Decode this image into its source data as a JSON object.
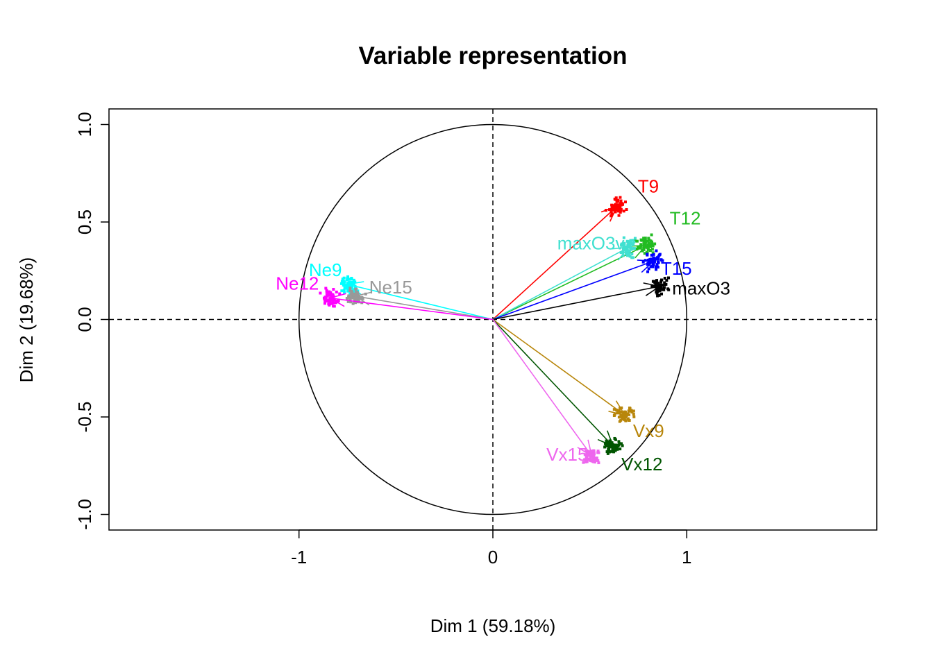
{
  "chart_data": {
    "type": "scatter",
    "title": "Variable representation",
    "xlabel": "Dim 1 (59.18%)",
    "ylabel": "Dim 2 (19.68%)",
    "xlim": [
      -1.98,
      1.98
    ],
    "ylim": [
      -1.08,
      1.08
    ],
    "xticks": [
      -1,
      0,
      1
    ],
    "xtick_labels": [
      "-1",
      "0",
      "1"
    ],
    "yticks": [
      -1.0,
      -0.5,
      0.0,
      0.5,
      1.0
    ],
    "ytick_labels": [
      "-1.0",
      "-0.5",
      "0.0",
      "0.5",
      "1.0"
    ],
    "unit_circle": true,
    "reference_lines": "dashed at x=0 and y=0",
    "grid": false,
    "series": [
      {
        "name": "T9",
        "x": 0.64,
        "y": 0.58,
        "color": "#ff0000"
      },
      {
        "name": "T12",
        "x": 0.79,
        "y": 0.38,
        "color": "#22bb22"
      },
      {
        "name": "maxO3v",
        "x": 0.7,
        "y": 0.37,
        "color": "#40e0d0"
      },
      {
        "name": "T15",
        "x": 0.83,
        "y": 0.3,
        "color": "#0000ff"
      },
      {
        "name": "maxO3",
        "x": 0.86,
        "y": 0.17,
        "color": "#000000"
      },
      {
        "name": "Ne9",
        "x": -0.75,
        "y": 0.18,
        "color": "#00ffff"
      },
      {
        "name": "Ne15",
        "x": -0.71,
        "y": 0.12,
        "color": "#999999"
      },
      {
        "name": "Ne12",
        "x": -0.84,
        "y": 0.11,
        "color": "#ff00ff"
      },
      {
        "name": "Vx9",
        "x": 0.68,
        "y": -0.49,
        "color": "#b8860b"
      },
      {
        "name": "Vx12",
        "x": 0.62,
        "y": -0.65,
        "color": "#005500"
      },
      {
        "name": "Vx15",
        "x": 0.51,
        "y": -0.7,
        "color": "#ee66ee"
      }
    ]
  }
}
